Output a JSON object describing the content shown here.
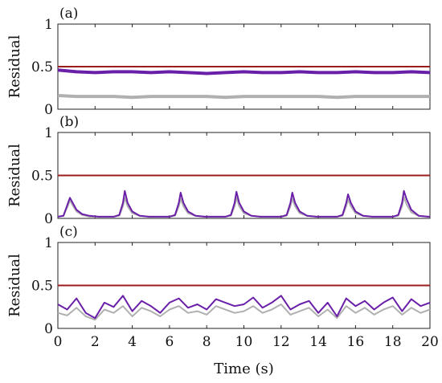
{
  "colors": {
    "threshold": "#9b1c1c",
    "purple": "#6a1fa8",
    "gray": "#b0b0b0"
  },
  "chart_data": [
    {
      "type": "line",
      "panel_label": "(a)",
      "ylabel": "Residual",
      "xlim": [
        0,
        20
      ],
      "ylim": [
        0,
        1
      ],
      "yticks": [
        "0",
        "0.5",
        "1"
      ],
      "threshold": 0.5,
      "series": [
        {
          "color": "purple",
          "x": [
            0,
            1,
            2,
            3,
            4,
            5,
            6,
            7,
            8,
            9,
            10,
            11,
            12,
            13,
            14,
            15,
            16,
            17,
            18,
            19,
            20
          ],
          "values": [
            0.46,
            0.44,
            0.43,
            0.44,
            0.44,
            0.43,
            0.44,
            0.43,
            0.42,
            0.43,
            0.44,
            0.43,
            0.43,
            0.44,
            0.43,
            0.43,
            0.44,
            0.43,
            0.43,
            0.44,
            0.43
          ]
        },
        {
          "color": "gray",
          "x": [
            0,
            1,
            2,
            3,
            4,
            5,
            6,
            7,
            8,
            9,
            10,
            11,
            12,
            13,
            14,
            15,
            16,
            17,
            18,
            19,
            20
          ],
          "values": [
            0.16,
            0.15,
            0.15,
            0.15,
            0.14,
            0.15,
            0.15,
            0.15,
            0.15,
            0.14,
            0.15,
            0.15,
            0.15,
            0.15,
            0.15,
            0.14,
            0.15,
            0.15,
            0.15,
            0.15,
            0.15
          ]
        }
      ]
    },
    {
      "type": "line",
      "panel_label": "(b)",
      "ylabel": "Residual",
      "xlim": [
        0,
        20
      ],
      "ylim": [
        0,
        1
      ],
      "yticks": [
        "0",
        "0.5",
        "1"
      ],
      "threshold": 0.5,
      "series": [
        {
          "color": "purple",
          "x": [
            0,
            0.3,
            0.55,
            0.65,
            0.8,
            1.0,
            1.3,
            1.7,
            2.2,
            2.6,
            3.0,
            3.3,
            3.5,
            3.6,
            3.75,
            4.0,
            4.4,
            4.9,
            5.5,
            6.0,
            6.3,
            6.5,
            6.6,
            6.75,
            7.0,
            7.4,
            7.9,
            8.5,
            9.0,
            9.3,
            9.5,
            9.6,
            9.75,
            10.0,
            10.4,
            10.9,
            11.5,
            12.0,
            12.3,
            12.5,
            12.6,
            12.75,
            13.0,
            13.4,
            13.9,
            14.5,
            15.0,
            15.3,
            15.5,
            15.6,
            15.75,
            16.0,
            16.4,
            16.9,
            17.5,
            18.0,
            18.3,
            18.5,
            18.6,
            18.75,
            19.0,
            19.4,
            19.9,
            20
          ],
          "values": [
            0.02,
            0.03,
            0.18,
            0.24,
            0.18,
            0.1,
            0.05,
            0.03,
            0.02,
            0.02,
            0.02,
            0.04,
            0.18,
            0.32,
            0.18,
            0.08,
            0.03,
            0.02,
            0.02,
            0.02,
            0.04,
            0.18,
            0.3,
            0.18,
            0.08,
            0.03,
            0.02,
            0.02,
            0.02,
            0.04,
            0.18,
            0.31,
            0.18,
            0.08,
            0.03,
            0.02,
            0.02,
            0.02,
            0.04,
            0.18,
            0.3,
            0.18,
            0.08,
            0.03,
            0.02,
            0.02,
            0.02,
            0.04,
            0.18,
            0.28,
            0.18,
            0.08,
            0.03,
            0.02,
            0.02,
            0.02,
            0.04,
            0.18,
            0.32,
            0.22,
            0.1,
            0.03,
            0.02,
            0.02
          ]
        },
        {
          "color": "gray",
          "x": [
            0,
            0.3,
            0.55,
            0.65,
            0.8,
            1.0,
            1.3,
            1.7,
            2.2,
            2.6,
            3.0,
            3.3,
            3.5,
            3.6,
            3.75,
            4.0,
            4.4,
            4.9,
            5.5,
            6.0,
            6.3,
            6.5,
            6.6,
            6.75,
            7.0,
            7.4,
            7.9,
            8.5,
            9.0,
            9.3,
            9.5,
            9.6,
            9.75,
            10.0,
            10.4,
            10.9,
            11.5,
            12.0,
            12.3,
            12.5,
            12.6,
            12.75,
            13.0,
            13.4,
            13.9,
            14.5,
            15.0,
            15.3,
            15.5,
            15.6,
            15.75,
            16.0,
            16.4,
            16.9,
            17.5,
            18.0,
            18.3,
            18.5,
            18.6,
            18.75,
            19.0,
            19.4,
            19.9,
            20
          ],
          "values": [
            0.02,
            0.03,
            0.15,
            0.21,
            0.15,
            0.08,
            0.04,
            0.02,
            0.02,
            0.02,
            0.02,
            0.03,
            0.14,
            0.24,
            0.14,
            0.06,
            0.03,
            0.02,
            0.02,
            0.02,
            0.03,
            0.14,
            0.23,
            0.14,
            0.06,
            0.03,
            0.02,
            0.02,
            0.02,
            0.03,
            0.14,
            0.24,
            0.14,
            0.06,
            0.03,
            0.02,
            0.02,
            0.02,
            0.03,
            0.14,
            0.23,
            0.14,
            0.06,
            0.03,
            0.02,
            0.02,
            0.02,
            0.03,
            0.14,
            0.22,
            0.14,
            0.06,
            0.03,
            0.02,
            0.02,
            0.02,
            0.03,
            0.14,
            0.25,
            0.16,
            0.07,
            0.03,
            0.02,
            0.02
          ]
        }
      ]
    },
    {
      "type": "line",
      "panel_label": "(c)",
      "ylabel": "Residual",
      "xlabel": "Time (s)",
      "xlim": [
        0,
        20
      ],
      "ylim": [
        0,
        1
      ],
      "yticks": [
        "0",
        "0.5",
        "1"
      ],
      "xticks": [
        "0",
        "2",
        "4",
        "6",
        "8",
        "10",
        "12",
        "14",
        "16",
        "18",
        "20"
      ],
      "threshold": 0.5,
      "series": [
        {
          "color": "purple",
          "x": [
            0,
            0.5,
            1,
            1.5,
            2,
            2.5,
            3,
            3.5,
            4,
            4.5,
            5,
            5.5,
            6,
            6.5,
            7,
            7.5,
            8,
            8.5,
            9,
            9.5,
            10,
            10.5,
            11,
            11.5,
            12,
            12.5,
            13,
            13.5,
            14,
            14.5,
            15,
            15.5,
            16,
            16.5,
            17,
            17.5,
            18,
            18.5,
            19,
            19.5,
            20
          ],
          "values": [
            0.28,
            0.22,
            0.35,
            0.18,
            0.12,
            0.3,
            0.25,
            0.38,
            0.2,
            0.32,
            0.26,
            0.18,
            0.3,
            0.35,
            0.24,
            0.28,
            0.22,
            0.34,
            0.3,
            0.26,
            0.28,
            0.36,
            0.24,
            0.3,
            0.38,
            0.22,
            0.28,
            0.32,
            0.18,
            0.3,
            0.14,
            0.35,
            0.26,
            0.32,
            0.22,
            0.3,
            0.36,
            0.2,
            0.34,
            0.26,
            0.3
          ]
        },
        {
          "color": "gray",
          "x": [
            0,
            0.5,
            1,
            1.5,
            2,
            2.5,
            3,
            3.5,
            4,
            4.5,
            5,
            5.5,
            6,
            6.5,
            7,
            7.5,
            8,
            8.5,
            9,
            9.5,
            10,
            10.5,
            11,
            11.5,
            12,
            12.5,
            13,
            13.5,
            14,
            14.5,
            15,
            15.5,
            16,
            16.5,
            17,
            17.5,
            18,
            18.5,
            19,
            19.5,
            20
          ],
          "values": [
            0.18,
            0.15,
            0.24,
            0.14,
            0.1,
            0.22,
            0.18,
            0.26,
            0.14,
            0.24,
            0.2,
            0.14,
            0.22,
            0.26,
            0.18,
            0.2,
            0.16,
            0.26,
            0.22,
            0.18,
            0.2,
            0.26,
            0.18,
            0.22,
            0.28,
            0.16,
            0.2,
            0.24,
            0.14,
            0.22,
            0.12,
            0.26,
            0.18,
            0.24,
            0.16,
            0.22,
            0.26,
            0.16,
            0.24,
            0.18,
            0.22
          ]
        }
      ]
    }
  ]
}
